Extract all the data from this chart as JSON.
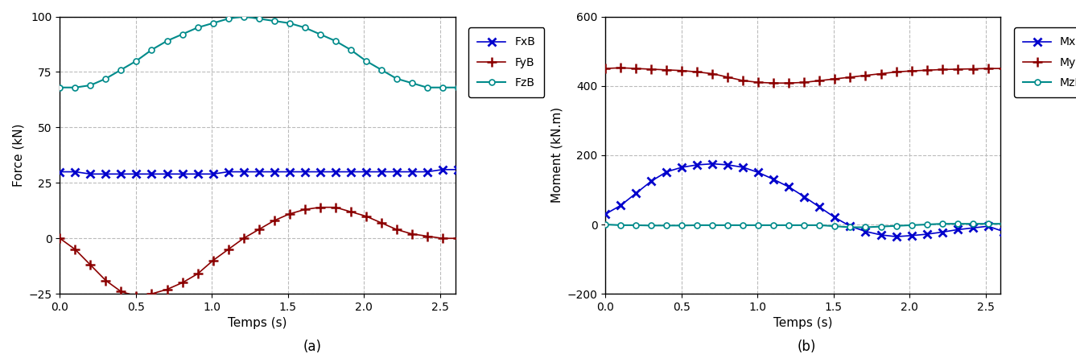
{
  "subplot_a": {
    "title": "(a)",
    "xlabel": "Temps (s)",
    "ylabel": "Force (kN)",
    "xlim": [
      0,
      2.6
    ],
    "ylim": [
      -25,
      100
    ],
    "yticks": [
      -25,
      0,
      25,
      50,
      75,
      100
    ],
    "xticks": [
      0,
      0.5,
      1,
      1.5,
      2,
      2.5
    ],
    "FxB": {
      "label": "FxB",
      "color": "#0000CC",
      "marker": "x",
      "linestyle": "-",
      "linewidth": 1.2,
      "markersize": 7,
      "markeredgewidth": 2.0
    },
    "FyB": {
      "label": "FyB",
      "color": "#8B0000",
      "marker": "+",
      "linestyle": "-",
      "linewidth": 1.2,
      "markersize": 8,
      "markeredgewidth": 1.8
    },
    "FzB": {
      "label": "FzB",
      "color": "#008B8B",
      "marker": "o",
      "linestyle": "-",
      "linewidth": 1.5,
      "markersize": 5,
      "markeredgewidth": 1.2,
      "markerfacecolor": "white"
    },
    "FxB_vals": [
      30,
      30,
      29,
      29,
      29,
      29,
      29,
      29,
      29,
      29,
      29,
      30,
      30,
      30,
      30,
      30,
      30,
      30,
      30,
      30,
      30,
      30,
      30,
      30,
      30,
      31,
      31
    ],
    "FyB_vals": [
      0,
      -5,
      -12,
      -19,
      -24,
      -26,
      -25,
      -23,
      -20,
      -16,
      -10,
      -5,
      0,
      4,
      8,
      11,
      13,
      14,
      14,
      12,
      10,
      7,
      4,
      2,
      1,
      0,
      0
    ],
    "FzB_vals": [
      68,
      68,
      69,
      72,
      76,
      80,
      85,
      89,
      92,
      95,
      97,
      99,
      100,
      99,
      98,
      97,
      95,
      92,
      89,
      85,
      80,
      76,
      72,
      70,
      68,
      68,
      68
    ]
  },
  "subplot_b": {
    "title": "(b)",
    "xlabel": "Temps (s)",
    "ylabel": "Moment (kN.m)",
    "xlim": [
      0,
      2.6
    ],
    "ylim": [
      -200,
      600
    ],
    "yticks": [
      -200,
      0,
      200,
      400,
      600
    ],
    "xticks": [
      0,
      0.5,
      1,
      1.5,
      2,
      2.5
    ],
    "MxB": {
      "label": "MxB",
      "color": "#0000CC",
      "marker": "x",
      "linestyle": "-",
      "linewidth": 1.2,
      "markersize": 7,
      "markeredgewidth": 2.0
    },
    "MyB": {
      "label": "MyB",
      "color": "#8B0000",
      "marker": "+",
      "linestyle": "-",
      "linewidth": 1.2,
      "markersize": 8,
      "markeredgewidth": 1.8
    },
    "MzB": {
      "label": "MzB",
      "color": "#008B8B",
      "marker": "o",
      "linestyle": "-",
      "linewidth": 1.5,
      "markersize": 5,
      "markeredgewidth": 1.2,
      "markerfacecolor": "white"
    },
    "MxB_vals": [
      30,
      55,
      90,
      125,
      152,
      165,
      172,
      175,
      172,
      165,
      150,
      130,
      108,
      80,
      50,
      20,
      -5,
      -20,
      -30,
      -35,
      -32,
      -28,
      -22,
      -15,
      -10,
      -5,
      -20
    ],
    "MyB_vals": [
      450,
      452,
      450,
      448,
      446,
      444,
      440,
      435,
      425,
      415,
      410,
      408,
      408,
      410,
      415,
      420,
      425,
      430,
      435,
      440,
      443,
      445,
      447,
      448,
      449,
      450,
      450
    ],
    "MzB_vals": [
      0,
      -2,
      -2,
      -3,
      -3,
      -3,
      -2,
      -2,
      -2,
      -2,
      -2,
      -2,
      -2,
      -2,
      -2,
      -5,
      -8,
      -8,
      -6,
      -4,
      -2,
      0,
      2,
      2,
      2,
      2,
      2
    ]
  },
  "n_points": 27,
  "t_start": 0.0,
  "t_end": 2.617,
  "background_color": "#ffffff",
  "grid_color": "#bbbbbb",
  "grid_linestyle": "--",
  "legend_fontsize": 10,
  "axis_label_fontsize": 11,
  "tick_fontsize": 10,
  "title_fontsize": 12
}
